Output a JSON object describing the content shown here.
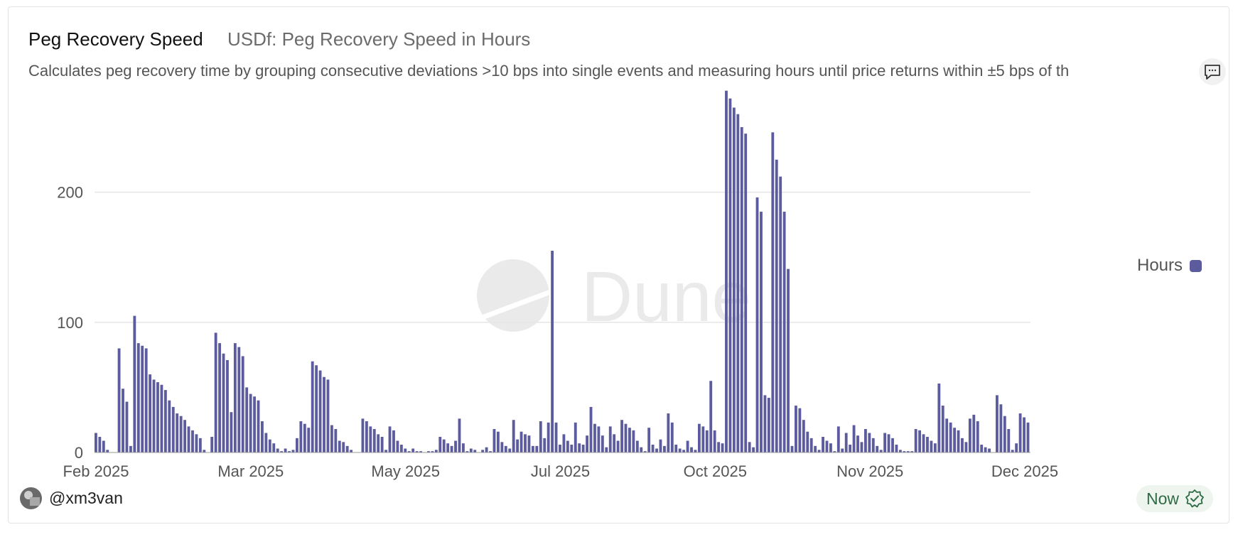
{
  "header": {
    "title": "Peg Recovery Speed",
    "subtitle": "USDf: Peg Recovery Speed in Hours",
    "description": "Calculates peg recovery time by grouping consecutive deviations >10 bps into single events and measuring hours until price returns within ±5 bps of th"
  },
  "watermark": "Dune",
  "footer": {
    "author": "@xm3van",
    "status": "Now"
  },
  "colors": {
    "bar": "#5b5b9d",
    "status": "#2f6b44"
  },
  "icons": [
    "comment-icon",
    "avatar",
    "verified-check-icon"
  ],
  "chart_data": {
    "type": "bar",
    "title": "",
    "xlabel": "",
    "ylabel": "",
    "ylim": [
      0,
      280
    ],
    "yticks": [
      0,
      100,
      200
    ],
    "grid": true,
    "legend_position": "right",
    "x_tick_labels": [
      "Feb 2025",
      "Mar 2025",
      "May 2025",
      "Jul 2025",
      "Oct 2025",
      "Nov 2025",
      "Dec 2025"
    ],
    "series": [
      {
        "name": "Hours",
        "values": [
          15,
          12,
          9,
          2,
          0,
          0,
          80,
          49,
          39,
          5,
          105,
          84,
          82,
          80,
          60,
          56,
          54,
          52,
          48,
          40,
          35,
          30,
          28,
          25,
          20,
          17,
          14,
          11,
          2,
          0,
          12,
          92,
          84,
          76,
          71,
          31,
          84,
          81,
          74,
          50,
          45,
          43,
          40,
          24,
          15,
          10,
          7,
          3,
          1,
          3,
          1,
          2,
          11,
          24,
          22,
          19,
          70,
          67,
          63,
          58,
          56,
          21,
          18,
          9,
          8,
          5,
          2,
          0,
          0,
          26,
          24,
          20,
          18,
          14,
          12,
          2,
          20,
          17,
          9,
          6,
          3,
          1,
          3,
          1,
          1,
          0,
          1,
          1,
          2,
          12,
          10,
          7,
          5,
          9,
          26,
          7,
          1,
          3,
          2,
          0,
          2,
          4,
          1,
          18,
          16,
          8,
          5,
          3,
          25,
          10,
          16,
          14,
          13,
          5,
          5,
          24,
          11,
          23,
          155,
          23,
          6,
          14,
          9,
          6,
          23,
          7,
          6,
          13,
          35,
          22,
          20,
          13,
          4,
          20,
          14,
          9,
          25,
          22,
          19,
          17,
          9,
          4,
          1,
          19,
          6,
          3,
          10,
          5,
          30,
          23,
          6,
          3,
          2,
          9,
          4,
          2,
          22,
          20,
          17,
          55,
          17,
          8,
          7,
          278,
          272,
          265,
          260,
          250,
          245,
          8,
          4,
          196,
          185,
          44,
          42,
          246,
          225,
          212,
          185,
          141,
          5,
          36,
          34,
          25,
          16,
          11,
          5,
          2,
          12,
          9,
          7,
          1,
          20,
          3,
          15,
          6,
          21,
          13,
          8,
          18,
          15,
          11,
          5,
          2,
          15,
          14,
          11,
          6,
          2,
          1,
          1,
          1,
          18,
          17,
          14,
          12,
          9,
          7,
          53,
          36,
          26,
          23,
          19,
          17,
          11,
          8,
          26,
          29,
          24,
          6,
          4,
          3,
          0,
          44,
          37,
          28,
          18,
          2,
          7,
          30,
          27,
          23
        ]
      }
    ]
  }
}
